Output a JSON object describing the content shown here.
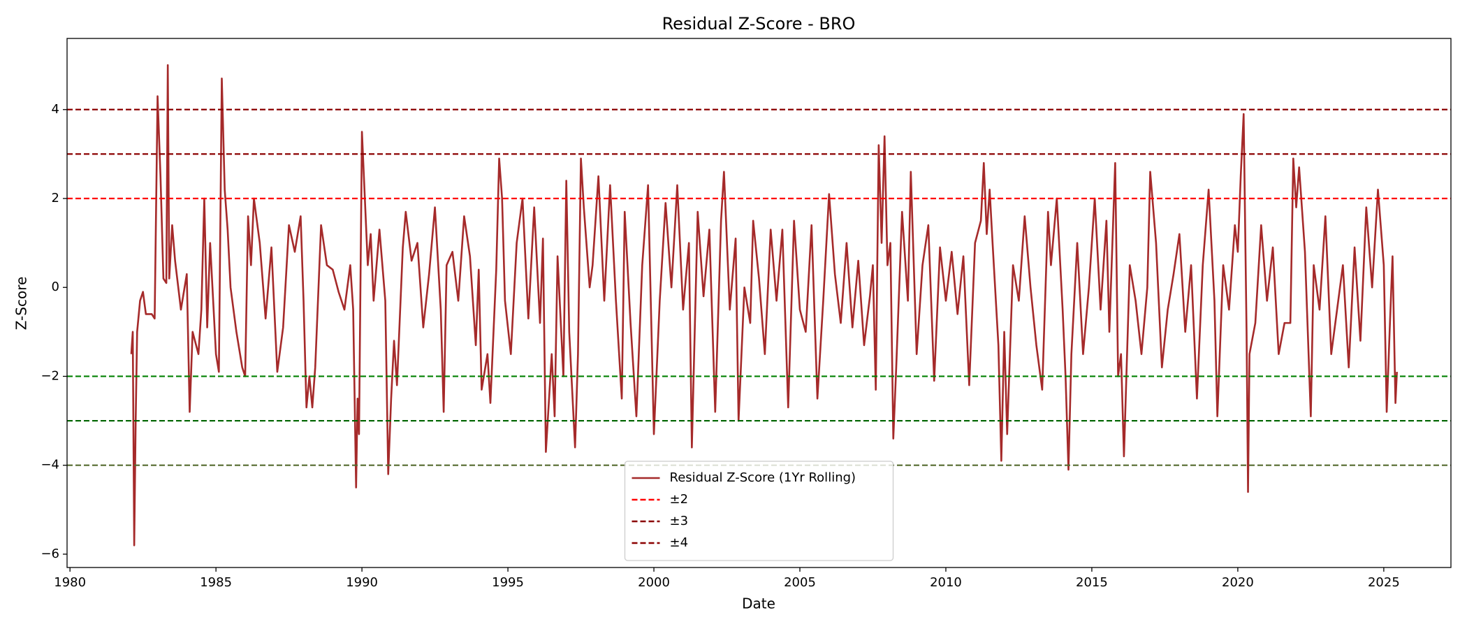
{
  "chart_data": {
    "type": "line",
    "title": "Residual Z-Score - BRO",
    "x_label": "Date",
    "y_label": "Z-Score",
    "xlim": [
      1979.9,
      2027.3
    ],
    "ylim": [
      -6.3,
      5.6
    ],
    "xticks": [
      1980,
      1985,
      1990,
      1995,
      2000,
      2005,
      2010,
      2015,
      2020,
      2025
    ],
    "yticks": [
      {
        "value": -6,
        "label": "−6"
      },
      {
        "value": -4,
        "label": "−4"
      },
      {
        "value": -2,
        "label": "−2"
      },
      0,
      2,
      4
    ],
    "legend": "lower center",
    "x": [
      1982.1,
      1982.15,
      1982.2,
      1982.25,
      1982.3,
      1982.4,
      1982.5,
      1982.6,
      1982.8,
      1982.9,
      1983.0,
      1983.1,
      1983.2,
      1983.3,
      1983.35,
      1983.4,
      1983.5,
      1983.6,
      1983.8,
      1984.0,
      1984.1,
      1984.2,
      1984.4,
      1984.5,
      1984.6,
      1984.7,
      1984.8,
      1985.0,
      1985.1,
      1985.2,
      1985.3,
      1985.4,
      1985.5,
      1985.7,
      1985.9,
      1986.0,
      1986.1,
      1986.2,
      1986.3,
      1986.5,
      1986.7,
      1986.9,
      1987.1,
      1987.3,
      1987.5,
      1987.7,
      1987.9,
      1988.0,
      1988.1,
      1988.2,
      1988.3,
      1988.4,
      1988.6,
      1988.8,
      1989.0,
      1989.2,
      1989.4,
      1989.6,
      1989.7,
      1989.8,
      1989.85,
      1989.9,
      1990.0,
      1990.1,
      1990.2,
      1990.3,
      1990.4,
      1990.6,
      1990.8,
      1990.9,
      1991.0,
      1991.1,
      1991.2,
      1991.4,
      1991.5,
      1991.7,
      1991.9,
      1992.1,
      1992.3,
      1992.5,
      1992.7,
      1992.8,
      1992.9,
      1993.1,
      1993.3,
      1993.5,
      1993.7,
      1993.9,
      1994.0,
      1994.1,
      1994.3,
      1994.4,
      1994.6,
      1994.7,
      1994.8,
      1994.9,
      1995.1,
      1995.3,
      1995.5,
      1995.7,
      1995.9,
      1996.1,
      1996.2,
      1996.3,
      1996.5,
      1996.6,
      1996.7,
      1996.9,
      1997.0,
      1997.1,
      1997.3,
      1997.4,
      1997.5,
      1997.6,
      1997.8,
      1997.9,
      1998.1,
      1998.3,
      1998.5,
      1998.7,
      1998.9,
      1999.0,
      1999.2,
      1999.4,
      1999.6,
      1999.8,
      2000.0,
      2000.2,
      2000.4,
      2000.6,
      2000.8,
      2001.0,
      2001.2,
      2001.3,
      2001.5,
      2001.7,
      2001.9,
      2002.1,
      2002.3,
      2002.4,
      2002.6,
      2002.8,
      2002.9,
      2003.1,
      2003.3,
      2003.4,
      2003.6,
      2003.8,
      2004.0,
      2004.2,
      2004.4,
      2004.6,
      2004.8,
      2005.0,
      2005.2,
      2005.4,
      2005.6,
      2005.8,
      2006.0,
      2006.2,
      2006.4,
      2006.6,
      2006.8,
      2007.0,
      2007.2,
      2007.4,
      2007.5,
      2007.6,
      2007.7,
      2007.8,
      2007.9,
      2008.0,
      2008.1,
      2008.2,
      2008.3,
      2008.5,
      2008.7,
      2008.8,
      2009.0,
      2009.2,
      2009.4,
      2009.6,
      2009.8,
      2010.0,
      2010.2,
      2010.4,
      2010.6,
      2010.8,
      2011.0,
      2011.2,
      2011.3,
      2011.4,
      2011.5,
      2011.6,
      2011.8,
      2011.9,
      2012.0,
      2012.1,
      2012.3,
      2012.5,
      2012.7,
      2012.9,
      2013.1,
      2013.3,
      2013.5,
      2013.6,
      2013.8,
      2014.0,
      2014.1,
      2014.2,
      2014.3,
      2014.5,
      2014.7,
      2014.9,
      2015.1,
      2015.3,
      2015.5,
      2015.6,
      2015.8,
      2015.9,
      2016.0,
      2016.1,
      2016.3,
      2016.5,
      2016.7,
      2016.9,
      2017.0,
      2017.2,
      2017.4,
      2017.6,
      2017.8,
      2018.0,
      2018.2,
      2018.4,
      2018.6,
      2018.8,
      2019.0,
      2019.2,
      2019.3,
      2019.5,
      2019.7,
      2019.9,
      2020.0,
      2020.1,
      2020.2,
      2020.3,
      2020.35,
      2020.4,
      2020.6,
      2020.8,
      2021.0,
      2021.2,
      2021.4,
      2021.6,
      2021.8,
      2021.9,
      2022.0,
      2022.1,
      2022.3,
      2022.5,
      2022.6,
      2022.8,
      2023.0,
      2023.2,
      2023.4,
      2023.6,
      2023.8,
      2024.0,
      2024.2,
      2024.4,
      2024.6,
      2024.8,
      2025.0,
      2025.1,
      2025.2,
      2025.3,
      2025.4,
      2025.45
    ],
    "series": [
      {
        "name": "Residual Z-Score (1Yr Rolling)",
        "color": "#a52a2a",
        "values": [
          -1.5,
          -1.0,
          -5.8,
          -3,
          -1,
          -0.3,
          -0.1,
          -0.6,
          -0.6,
          -0.7,
          4.3,
          2.5,
          0.2,
          0.1,
          5.0,
          0.2,
          1.4,
          0.6,
          -0.5,
          0.3,
          -2.8,
          -1.0,
          -1.5,
          -0.5,
          2.0,
          -0.9,
          1.0,
          -1.5,
          -1.9,
          4.7,
          2.2,
          1.3,
          0.0,
          -1.0,
          -1.8,
          -2.0,
          1.6,
          0.5,
          2.0,
          1.0,
          -0.7,
          0.9,
          -1.9,
          -0.9,
          1.4,
          0.8,
          1.6,
          -0.3,
          -2.7,
          -2.0,
          -2.7,
          -1.8,
          1.4,
          0.5,
          0.4,
          -0.1,
          -0.5,
          0.5,
          -0.5,
          -4.5,
          -2.5,
          -3.3,
          3.5,
          2.0,
          0.5,
          1.2,
          -0.3,
          1.3,
          -0.3,
          -4.2,
          -2.5,
          -1.2,
          -2.2,
          0.9,
          1.7,
          0.6,
          1.0,
          -0.9,
          0.3,
          1.8,
          -0.5,
          -2.8,
          0.5,
          0.8,
          -0.3,
          1.6,
          0.7,
          -1.3,
          0.4,
          -2.3,
          -1.5,
          -2.6,
          0.4,
          2.9,
          2.0,
          -0.3,
          -1.5,
          1.0,
          2.0,
          -0.7,
          1.8,
          -0.8,
          1.1,
          -3.7,
          -1.5,
          -2.9,
          0.7,
          -2.0,
          2.4,
          -1.0,
          -3.6,
          -1.5,
          2.9,
          1.8,
          0.0,
          0.5,
          2.5,
          -0.3,
          2.3,
          -0.3,
          -2.5,
          1.7,
          -0.8,
          -2.9,
          0.5,
          2.3,
          -3.3,
          -0.3,
          1.9,
          0.0,
          2.3,
          -0.5,
          1.0,
          -3.6,
          1.7,
          -0.2,
          1.3,
          -2.8,
          1.5,
          2.6,
          -0.5,
          1.1,
          -3.0,
          0.0,
          -0.8,
          1.5,
          0.2,
          -1.5,
          1.3,
          -0.3,
          1.3,
          -2.7,
          1.5,
          -0.5,
          -1.0,
          1.4,
          -2.5,
          -0.3,
          2.1,
          0.3,
          -0.8,
          1.0,
          -0.9,
          0.6,
          -1.3,
          -0.2,
          0.5,
          -2.3,
          3.2,
          1.0,
          3.4,
          0.5,
          1.0,
          -3.4,
          -1.8,
          1.7,
          -0.3,
          2.6,
          -1.5,
          0.5,
          1.4,
          -2.1,
          0.9,
          -0.3,
          0.8,
          -0.6,
          0.7,
          -2.2,
          1.0,
          1.5,
          2.8,
          1.2,
          2.2,
          1.0,
          -1.3,
          -3.9,
          -1.0,
          -3.3,
          0.5,
          -0.3,
          1.6,
          0.0,
          -1.3,
          -2.3,
          1.7,
          0.5,
          2.0,
          -0.5,
          -2.0,
          -4.1,
          -1.5,
          1.0,
          -1.5,
          0.0,
          2.0,
          -0.5,
          1.5,
          -1.0,
          2.8,
          -2.0,
          -1.5,
          -3.8,
          0.5,
          -0.3,
          -1.5,
          0.0,
          2.6,
          1.0,
          -1.8,
          -0.5,
          0.3,
          1.2,
          -1.0,
          0.5,
          -2.5,
          0.5,
          2.2,
          -0.3,
          -2.9,
          0.5,
          -0.5,
          1.4,
          0.8,
          2.5,
          3.9,
          -1.0,
          -4.6,
          -1.5,
          -0.8,
          1.4,
          -0.3,
          0.9,
          -1.5,
          -0.8,
          -0.8,
          2.9,
          1.8,
          2.7,
          0.8,
          -2.9,
          0.5,
          -0.5,
          1.6,
          -1.5,
          -0.5,
          0.5,
          -1.8,
          0.9,
          -1.2,
          1.8,
          0.0,
          2.2,
          0.5,
          -2.8,
          -1.0,
          0.7,
          -2.6,
          -1.9
        ]
      }
    ],
    "hlines": [
      {
        "name": "±2",
        "values": [
          2,
          -2
        ],
        "colors": [
          "#ff0000",
          "#008000"
        ]
      },
      {
        "name": "±3",
        "values": [
          3,
          -3
        ],
        "colors": [
          "#8b0000",
          "#006400"
        ]
      },
      {
        "name": "±4",
        "values": [
          4,
          -4
        ],
        "colors": [
          "#8b0000",
          "#556b2f"
        ]
      }
    ]
  }
}
